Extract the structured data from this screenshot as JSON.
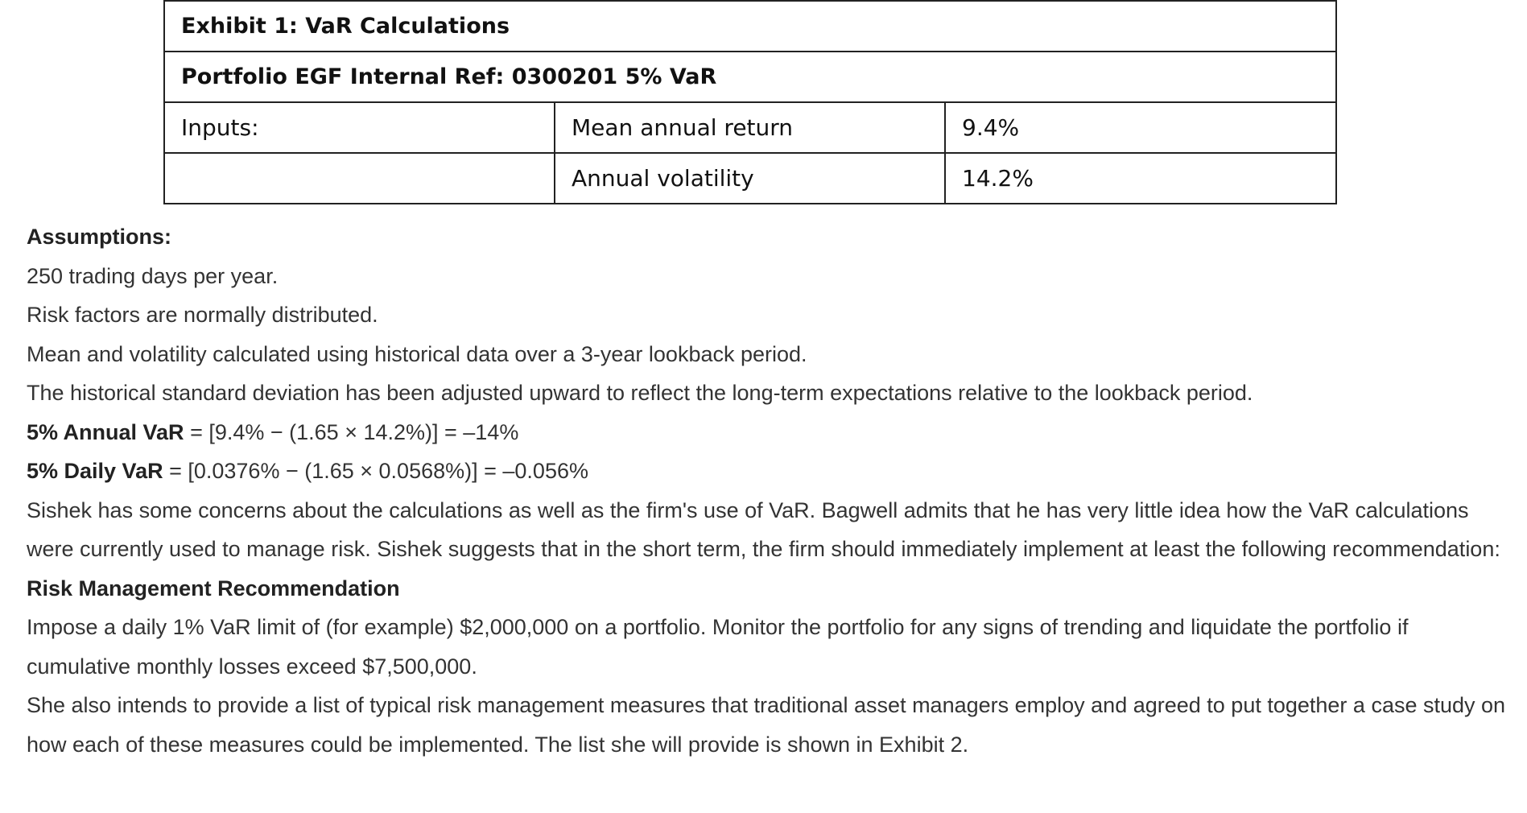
{
  "table": {
    "title": "Exhibit 1: VaR Calculations",
    "subtitle": "Portfolio EGF Internal Ref: 0300201 5% VaR",
    "inputs_label": "Inputs:",
    "inputs": [
      {
        "name": "Mean annual return",
        "value": "9.4%"
      },
      {
        "name": "Annual volatility",
        "value": "14.2%"
      }
    ]
  },
  "paragraphs": [
    [
      {
        "bold": true,
        "text": "Assumptions:"
      }
    ],
    [
      {
        "text": "250 trading days per year."
      }
    ],
    [
      {
        "text": "Risk factors are normally distributed."
      }
    ],
    [
      {
        "text": "Mean and volatility calculated using historical data over a 3-year lookback period."
      }
    ],
    [
      {
        "text": "The historical standard deviation has been adjusted upward to reflect the long-term expectations relative to the lookback period."
      }
    ],
    [
      {
        "bold": true,
        "text": "5% Annual VaR"
      },
      {
        "text": " = [9.4% − (1.65 × 14.2%)] = –14%"
      }
    ],
    [
      {
        "bold": true,
        "text": "5% Daily VaR"
      },
      {
        "text": " = [0.0376% − (1.65 × 0.0568%)] = –0.056%"
      }
    ],
    [
      {
        "text": "Sishek has some concerns about the calculations as well as the firm's use of VaR. Bagwell admits that he has very little idea how the VaR calculations were currently used to manage risk. Sishek suggests that in the short term, the firm should immediately implement at least the following recommendation:"
      }
    ],
    [
      {
        "bold": true,
        "text": "Risk Management Recommendation"
      }
    ],
    [
      {
        "text": "Impose a daily 1% VaR limit of (for example) $2,000,000 on a portfolio. Monitor the portfolio for any signs of trending and liquidate the portfolio if cumulative monthly losses exceed $7,500,000."
      }
    ],
    [
      {
        "text": "She also intends to provide a list of typical risk management measures that traditional asset managers employ and agreed to put together a case study on how each of these measures could be implemented. The list she will provide is shown in Exhibit 2."
      }
    ]
  ]
}
